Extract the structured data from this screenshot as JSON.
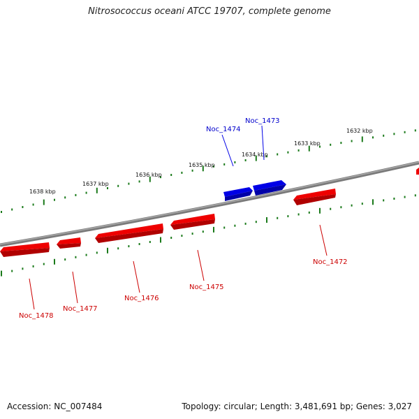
{
  "title": "Nitrosococcus oceani ATCC 19707, complete genome",
  "accession_label": "Accession: NC_007484",
  "summary_label": "Topology: circular; Length: 3,481,691 bp; Genes: 3,027",
  "colors": {
    "forward_gene": "#0000e6",
    "reverse_gene": "#ee0000",
    "backbone": "#7a7a7a",
    "ticks": "#1a7a1a"
  },
  "scale": {
    "labels": [
      "1638 kbp",
      "1637 kbp",
      "1636 kbp",
      "1635 kbp",
      "1634 kbp",
      "1633 kbp",
      "1632 kbp"
    ]
  },
  "genes": {
    "forward": [
      {
        "name": "Noc_1474"
      },
      {
        "name": "Noc_1473"
      }
    ],
    "reverse": [
      {
        "name": "Noc_1472"
      },
      {
        "name": "Noc_1475"
      },
      {
        "name": "Noc_1476"
      },
      {
        "name": "Noc_1477"
      },
      {
        "name": "Noc_1478"
      }
    ]
  }
}
